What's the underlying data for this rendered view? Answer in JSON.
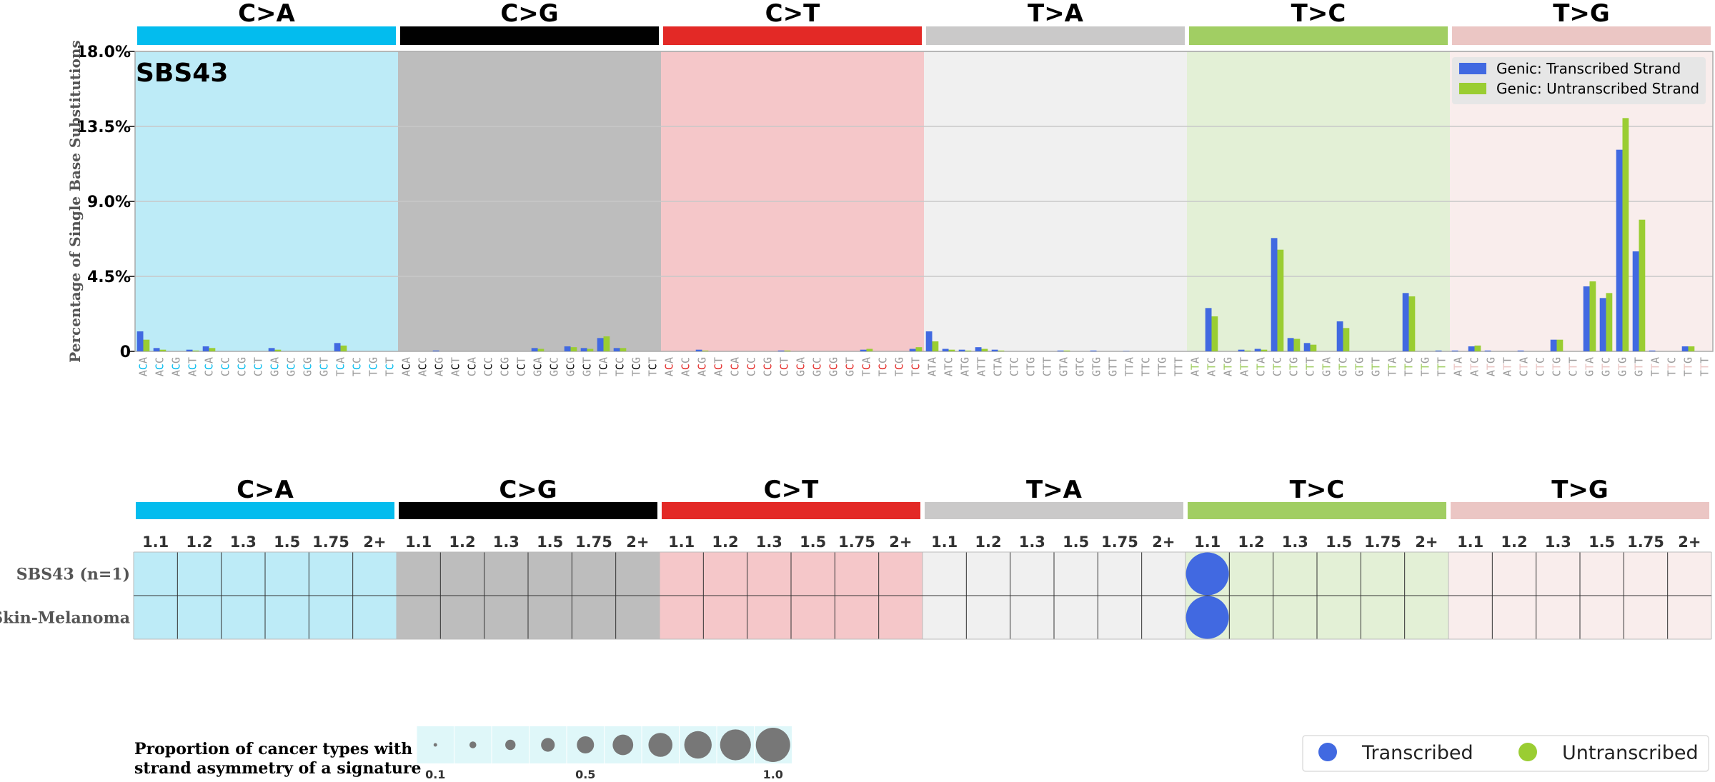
{
  "chart_data": [
    {
      "type": "bar",
      "signature_label": "SBS43",
      "ylabel": "Percentage of Single Base Substitutions",
      "yticks": [
        "18.0%",
        "13.5%",
        "9.0%",
        "4.5%",
        "0"
      ],
      "ylim": [
        0,
        18
      ],
      "grid": true,
      "legend_position": "top-right",
      "mutation_types": [
        {
          "label": "C>A",
          "color": "#03BCEE",
          "bg": "#BDEBF7",
          "ref": "C"
        },
        {
          "label": "C>G",
          "color": "#010101",
          "bg": "#BDBDBD",
          "ref": "C"
        },
        {
          "label": "C>T",
          "color": "#E32926",
          "bg": "#F5C7C9",
          "ref": "C"
        },
        {
          "label": "T>A",
          "color": "#CAC9C9",
          "bg": "#F0F0F0",
          "ref": "T"
        },
        {
          "label": "T>C",
          "color": "#A1CE63",
          "bg": "#E3F0D6",
          "ref": "T"
        },
        {
          "label": "T>G",
          "color": "#EBC6C4",
          "bg": "#F9EDEC",
          "ref": "T"
        }
      ],
      "contexts": [
        "ACA",
        "ACC",
        "ACG",
        "ACT",
        "CCA",
        "CCC",
        "CCG",
        "CCT",
        "GCA",
        "GCC",
        "GCG",
        "GCT",
        "TCA",
        "TCC",
        "TCG",
        "TCT",
        "ACA",
        "ACC",
        "ACG",
        "ACT",
        "CCA",
        "CCC",
        "CCG",
        "CCT",
        "GCA",
        "GCC",
        "GCG",
        "GCT",
        "TCA",
        "TCC",
        "TCG",
        "TCT",
        "ACA",
        "ACC",
        "ACG",
        "ACT",
        "CCA",
        "CCC",
        "CCG",
        "CCT",
        "GCA",
        "GCC",
        "GCG",
        "GCT",
        "TCA",
        "TCC",
        "TCG",
        "TCT",
        "ATA",
        "ATC",
        "ATG",
        "ATT",
        "CTA",
        "CTC",
        "CTG",
        "CTT",
        "GTA",
        "GTC",
        "GTG",
        "GTT",
        "TTA",
        "TTC",
        "TTG",
        "TTT",
        "ATA",
        "ATC",
        "ATG",
        "ATT",
        "CTA",
        "CTC",
        "CTG",
        "CTT",
        "GTA",
        "GTC",
        "GTG",
        "GTT",
        "TTA",
        "TTC",
        "TTG",
        "TTT",
        "ATA",
        "ATC",
        "ATG",
        "ATT",
        "CTA",
        "CTC",
        "CTG",
        "CTT",
        "GTA",
        "GTC",
        "GTG",
        "GTT",
        "TTA",
        "TTC",
        "TTG",
        "TTT"
      ],
      "series": [
        {
          "name": "Genic: Transcribed Strand",
          "color": "#4169E1",
          "values": [
            1.2,
            0.2,
            0.0,
            0.1,
            0.3,
            0.0,
            0.0,
            0.0,
            0.2,
            0.0,
            0.0,
            0.0,
            0.5,
            0.0,
            0.0,
            0.0,
            0.0,
            0.0,
            0.05,
            0.0,
            0.0,
            0.0,
            0.0,
            0.0,
            0.2,
            0.0,
            0.3,
            0.2,
            0.8,
            0.2,
            0.0,
            0.0,
            0.0,
            0.0,
            0.1,
            0.0,
            0.0,
            0.0,
            0.0,
            0.05,
            0.0,
            0.0,
            0.0,
            0.0,
            0.1,
            0.0,
            0.0,
            0.15,
            1.2,
            0.15,
            0.1,
            0.25,
            0.1,
            0.0,
            0.0,
            0.0,
            0.05,
            0.0,
            0.05,
            0.0,
            0.02,
            0.0,
            0.0,
            0.0,
            0.0,
            2.6,
            0.0,
            0.1,
            0.15,
            6.8,
            0.8,
            0.5,
            0.0,
            1.8,
            0.0,
            0.0,
            0.0,
            3.5,
            0.0,
            0.05,
            0.05,
            0.3,
            0.05,
            0.0,
            0.05,
            0.0,
            0.7,
            0.0,
            3.9,
            3.2,
            12.1,
            6.0,
            0.05,
            0.0,
            0.3,
            0.0
          ]
        },
        {
          "name": "Genic: Untranscribed Strand",
          "color": "#9ACD32",
          "values": [
            0.7,
            0.1,
            0.0,
            0.05,
            0.2,
            0.0,
            0.0,
            0.0,
            0.1,
            0.0,
            0.0,
            0.0,
            0.35,
            0.0,
            0.0,
            0.0,
            0.0,
            0.0,
            0.0,
            0.0,
            0.0,
            0.0,
            0.0,
            0.0,
            0.15,
            0.0,
            0.25,
            0.15,
            0.9,
            0.2,
            0.0,
            0.0,
            0.0,
            0.0,
            0.05,
            0.0,
            0.0,
            0.0,
            0.0,
            0.05,
            0.0,
            0.0,
            0.0,
            0.0,
            0.15,
            0.0,
            0.0,
            0.25,
            0.6,
            0.1,
            0.05,
            0.15,
            0.05,
            0.0,
            0.0,
            0.0,
            0.05,
            0.0,
            0.0,
            0.0,
            0.0,
            0.0,
            0.0,
            0.0,
            0.0,
            2.1,
            0.0,
            0.05,
            0.1,
            6.1,
            0.75,
            0.4,
            0.0,
            1.4,
            0.0,
            0.0,
            0.0,
            3.3,
            0.0,
            0.0,
            0.0,
            0.35,
            0.0,
            0.0,
            0.0,
            0.0,
            0.7,
            0.0,
            4.2,
            3.5,
            14.0,
            7.9,
            0.0,
            0.0,
            0.3,
            0.0
          ]
        }
      ]
    },
    {
      "type": "table",
      "mutation_types": [
        "C>A",
        "C>G",
        "C>T",
        "T>A",
        "T>C",
        "T>G"
      ],
      "buckets": [
        "1.1",
        "1.2",
        "1.3",
        "1.5",
        "1.75",
        "2+"
      ],
      "rows": [
        "SBS43 (n=1)",
        "Skin-Melanoma"
      ],
      "circles": [
        {
          "row": 0,
          "mutation": "T>C",
          "bucket": "1.1",
          "strand": "Transcribed",
          "proportion": 1.0
        },
        {
          "row": 1,
          "mutation": "T>C",
          "bucket": "1.1",
          "strand": "Transcribed",
          "proportion": 1.0
        }
      ],
      "size_legend": {
        "title_line1": "Proportion of cancer types with",
        "title_line2": "strand asymmetry of a signature",
        "values": [
          0.1,
          0.2,
          0.3,
          0.4,
          0.5,
          0.6,
          0.7,
          0.8,
          0.9,
          1.0
        ],
        "tick_labels": [
          "0.1",
          "0.5",
          "1.0"
        ]
      },
      "strand_legend": [
        {
          "label": "Transcribed",
          "color": "#4169E1"
        },
        {
          "label": "Untranscribed",
          "color": "#9ACD32"
        }
      ]
    }
  ]
}
